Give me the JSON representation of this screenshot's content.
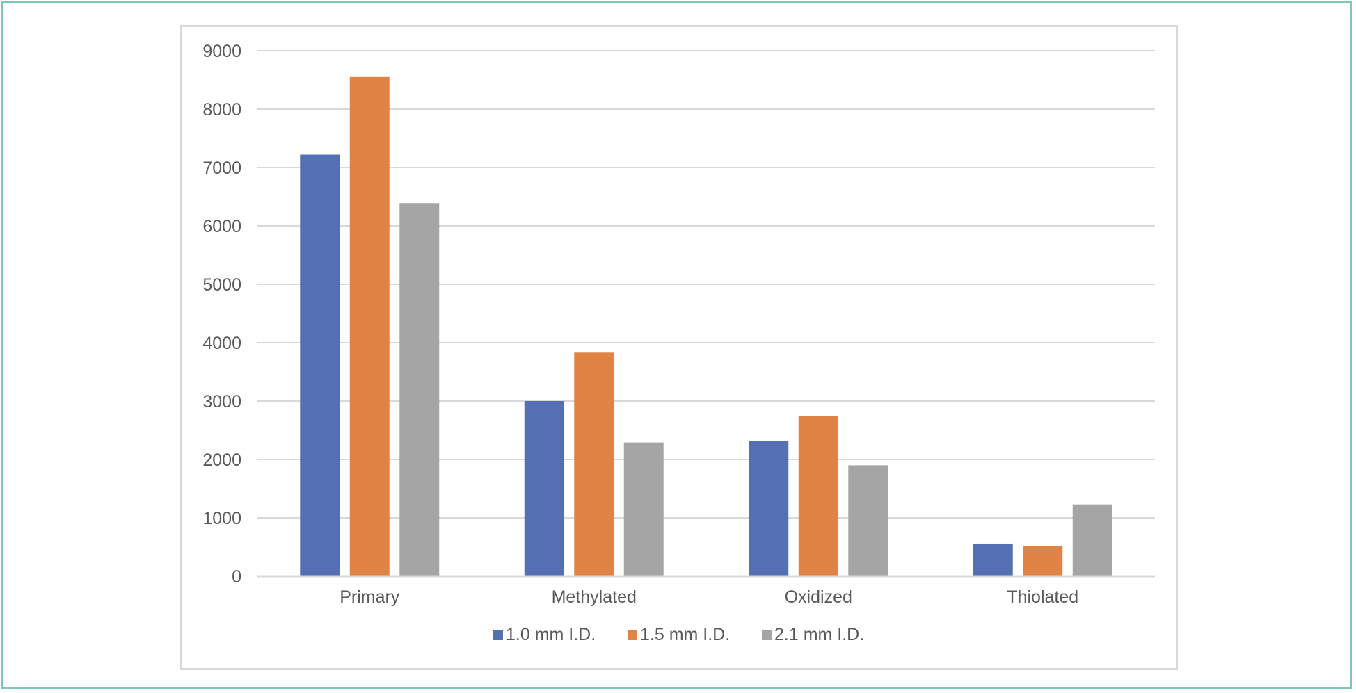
{
  "chart_data": {
    "type": "bar",
    "title": "",
    "xlabel": "",
    "ylabel": "",
    "ylim": [
      0,
      9000
    ],
    "yticks": [
      "0",
      "1000",
      "2000",
      "3000",
      "4000",
      "5000",
      "6000",
      "7000",
      "8000",
      "9000"
    ],
    "categories": [
      "Primary",
      "Methylated",
      "Oxidized",
      "Thiolated"
    ],
    "series": [
      {
        "name": "1.0 mm I.D.",
        "color": "#5470b3",
        "values": [
          7220,
          3000,
          2310,
          560
        ]
      },
      {
        "name": "1.5 mm I.D.",
        "color": "#e08344",
        "values": [
          8550,
          3830,
          2750,
          520
        ]
      },
      {
        "name": "2.1 mm I.D.",
        "color": "#a5a5a5",
        "values": [
          6390,
          2290,
          1900,
          1230
        ]
      }
    ],
    "grid": true,
    "legend_position": "bottom"
  }
}
